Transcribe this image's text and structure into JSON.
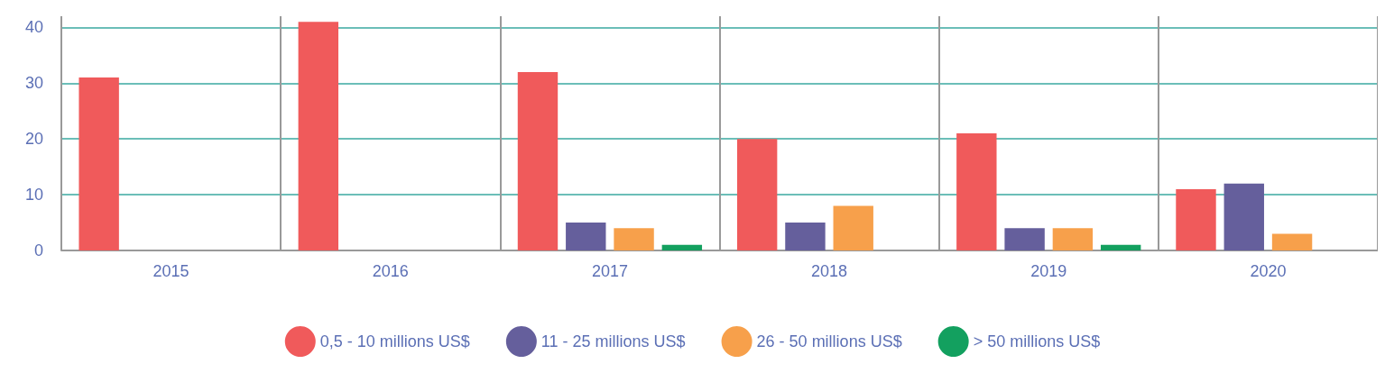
{
  "chart_data": {
    "type": "bar",
    "categories": [
      "2015",
      "2016",
      "2017",
      "2018",
      "2019",
      "2020"
    ],
    "series": [
      {
        "name": "0,5 - 10 millions US$",
        "color": "#f05a5b",
        "values": [
          31,
          41,
          32,
          20,
          21,
          11
        ]
      },
      {
        "name": "11 - 25 millions US$",
        "color": "#655f9c",
        "values": [
          0,
          0,
          5,
          5,
          4,
          12
        ]
      },
      {
        "name": "26 - 50 millions US$",
        "color": "#f7a04b",
        "values": [
          0,
          0,
          4,
          8,
          4,
          3
        ]
      },
      {
        "name": "> 50 millions US$",
        "color": "#13a05f",
        "values": [
          0,
          0,
          1,
          0,
          1,
          0
        ]
      }
    ],
    "ylim": [
      0,
      42
    ],
    "yticks": [
      0,
      10,
      20,
      30,
      40
    ],
    "grid": true,
    "legend": "bottom"
  }
}
